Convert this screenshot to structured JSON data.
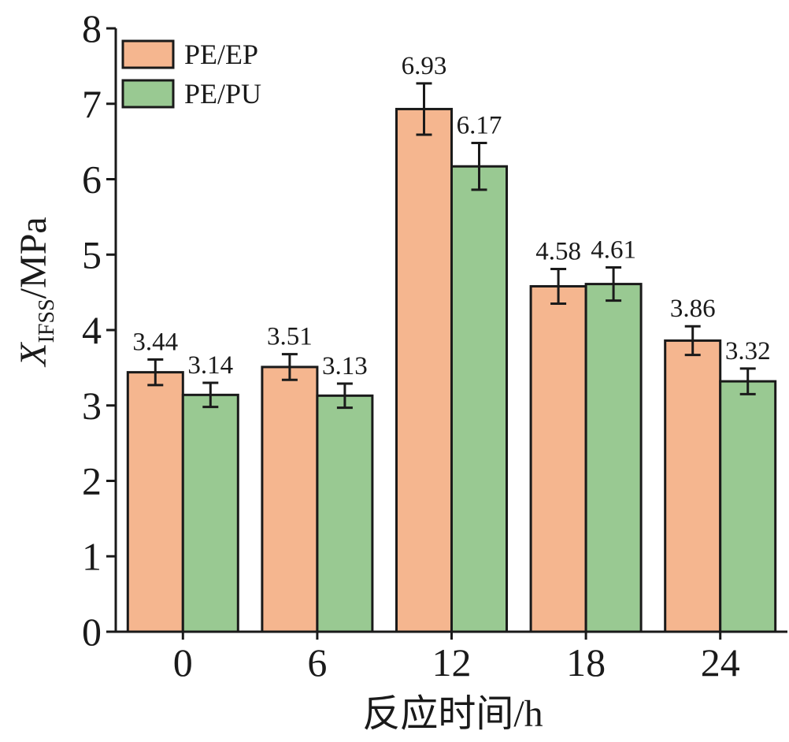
{
  "chart_data": {
    "type": "bar",
    "categories": [
      "0",
      "6",
      "12",
      "18",
      "24"
    ],
    "series": [
      {
        "name": "PE/EP",
        "color": "#f5b68f",
        "values": [
          3.44,
          3.51,
          6.93,
          4.58,
          3.86
        ],
        "errors": [
          0.17,
          0.17,
          0.34,
          0.23,
          0.19
        ],
        "labels": [
          "3.44",
          "3.51",
          "6.93",
          "4.58",
          "3.86"
        ]
      },
      {
        "name": "PE/PU",
        "color": "#99c992",
        "values": [
          3.14,
          3.13,
          6.17,
          4.61,
          3.32
        ],
        "errors": [
          0.16,
          0.16,
          0.31,
          0.22,
          0.17
        ],
        "labels": [
          "3.14",
          "3.13",
          "6.17",
          "4.61",
          "3.32"
        ]
      }
    ],
    "xlabel": "反应时间/h",
    "ylabel": {
      "main": "X",
      "subscript": "IFSS",
      "suffix": "/MPa"
    },
    "ylim": [
      0,
      8
    ],
    "yticks": [
      "0",
      "1",
      "2",
      "3",
      "4",
      "5",
      "6",
      "7",
      "8"
    ],
    "grid": false,
    "legend": "top-left"
  }
}
